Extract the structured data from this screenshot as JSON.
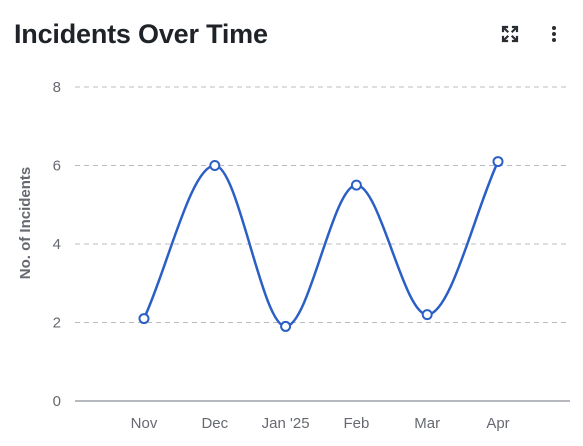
{
  "header": {
    "title": "Incidents Over Time",
    "expand_icon": "expand-icon",
    "menu_icon": "kebab-menu-icon"
  },
  "colors": {
    "line": "#2b5fc5",
    "grid": "#b8bcc2",
    "axis_text": "#666a70",
    "title": "#1f2328"
  },
  "chart_data": {
    "type": "line",
    "title": "Incidents Over Time",
    "xlabel": "",
    "ylabel": "No. of Incidents",
    "categories": [
      "Nov",
      "Dec",
      "Jan '25",
      "Feb",
      "Mar",
      "Apr"
    ],
    "series": [
      {
        "values": [
          2.1,
          6.0,
          1.9,
          5.5,
          2.2,
          6.1
        ]
      }
    ],
    "ylim": [
      0,
      8
    ],
    "yticks": [
      0,
      2,
      4,
      6,
      8
    ],
    "grid": true,
    "legend": "none"
  }
}
